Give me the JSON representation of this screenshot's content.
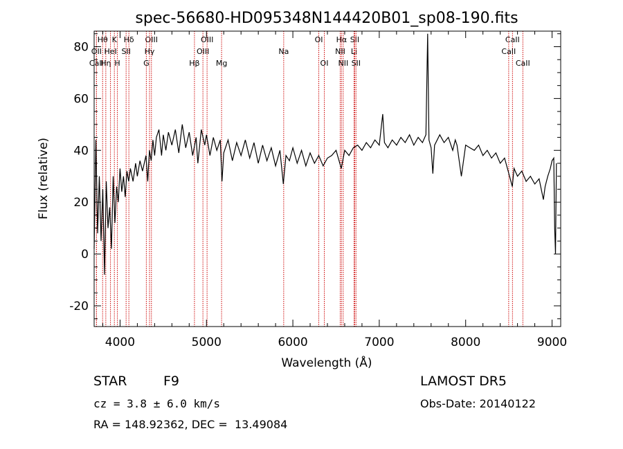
{
  "chart_data": {
    "type": "line",
    "title": "spec-56680-HD095348N144420B01_sp08-190.fits",
    "xlabel": "Wavelength (Å)",
    "ylabel": "Flux (relative)",
    "xlim": [
      3700,
      9100
    ],
    "ylim": [
      -28,
      86
    ],
    "xticks": [
      4000,
      5000,
      6000,
      7000,
      8000,
      9000
    ],
    "yticks": [
      -20,
      0,
      20,
      40,
      60,
      80
    ],
    "grid": false,
    "series": [
      {
        "color": "#000000",
        "points": [
          [
            3700,
            2
          ],
          [
            3720,
            44
          ],
          [
            3740,
            8
          ],
          [
            3760,
            30
          ],
          [
            3780,
            5
          ],
          [
            3800,
            25
          ],
          [
            3820,
            -8
          ],
          [
            3840,
            28
          ],
          [
            3860,
            10
          ],
          [
            3880,
            18
          ],
          [
            3900,
            2
          ],
          [
            3920,
            30
          ],
          [
            3940,
            12
          ],
          [
            3960,
            26
          ],
          [
            3980,
            20
          ],
          [
            4000,
            33
          ],
          [
            4020,
            24
          ],
          [
            4040,
            30
          ],
          [
            4060,
            22
          ],
          [
            4080,
            32
          ],
          [
            4100,
            28
          ],
          [
            4120,
            33
          ],
          [
            4150,
            28
          ],
          [
            4180,
            35
          ],
          [
            4200,
            30
          ],
          [
            4230,
            36
          ],
          [
            4260,
            32
          ],
          [
            4300,
            38
          ],
          [
            4320,
            28
          ],
          [
            4340,
            40
          ],
          [
            4360,
            36
          ],
          [
            4380,
            44
          ],
          [
            4400,
            38
          ],
          [
            4420,
            45
          ],
          [
            4450,
            48
          ],
          [
            4480,
            38
          ],
          [
            4500,
            46
          ],
          [
            4530,
            40
          ],
          [
            4560,
            47
          ],
          [
            4600,
            42
          ],
          [
            4640,
            48
          ],
          [
            4680,
            39
          ],
          [
            4720,
            50
          ],
          [
            4760,
            41
          ],
          [
            4800,
            47
          ],
          [
            4840,
            38
          ],
          [
            4880,
            45
          ],
          [
            4900,
            35
          ],
          [
            4940,
            48
          ],
          [
            4980,
            42
          ],
          [
            5000,
            46
          ],
          [
            5040,
            38
          ],
          [
            5080,
            45
          ],
          [
            5120,
            40
          ],
          [
            5160,
            44
          ],
          [
            5180,
            28
          ],
          [
            5200,
            39
          ],
          [
            5250,
            44
          ],
          [
            5300,
            36
          ],
          [
            5350,
            43
          ],
          [
            5400,
            38
          ],
          [
            5450,
            44
          ],
          [
            5500,
            37
          ],
          [
            5550,
            43
          ],
          [
            5600,
            35
          ],
          [
            5650,
            42
          ],
          [
            5700,
            36
          ],
          [
            5750,
            41
          ],
          [
            5800,
            34
          ],
          [
            5850,
            40
          ],
          [
            5890,
            27
          ],
          [
            5920,
            38
          ],
          [
            5960,
            36
          ],
          [
            6000,
            41
          ],
          [
            6050,
            35
          ],
          [
            6100,
            40
          ],
          [
            6150,
            34
          ],
          [
            6200,
            39
          ],
          [
            6250,
            35
          ],
          [
            6300,
            38
          ],
          [
            6350,
            34
          ],
          [
            6400,
            37
          ],
          [
            6450,
            38
          ],
          [
            6500,
            40
          ],
          [
            6560,
            33
          ],
          [
            6600,
            40
          ],
          [
            6650,
            38
          ],
          [
            6700,
            41
          ],
          [
            6750,
            42
          ],
          [
            6800,
            40
          ],
          [
            6850,
            43
          ],
          [
            6900,
            41
          ],
          [
            6950,
            44
          ],
          [
            7000,
            42
          ],
          [
            7040,
            54
          ],
          [
            7060,
            43
          ],
          [
            7100,
            41
          ],
          [
            7150,
            44
          ],
          [
            7200,
            42
          ],
          [
            7250,
            45
          ],
          [
            7300,
            43
          ],
          [
            7350,
            46
          ],
          [
            7400,
            42
          ],
          [
            7450,
            45
          ],
          [
            7500,
            43
          ],
          [
            7540,
            46
          ],
          [
            7560,
            85
          ],
          [
            7575,
            44
          ],
          [
            7600,
            41
          ],
          [
            7620,
            31
          ],
          [
            7640,
            42
          ],
          [
            7700,
            46
          ],
          [
            7750,
            43
          ],
          [
            7800,
            45
          ],
          [
            7850,
            40
          ],
          [
            7880,
            44
          ],
          [
            7900,
            42
          ],
          [
            7950,
            30
          ],
          [
            8000,
            42
          ],
          [
            8050,
            41
          ],
          [
            8100,
            40
          ],
          [
            8150,
            42
          ],
          [
            8200,
            38
          ],
          [
            8250,
            40
          ],
          [
            8300,
            37
          ],
          [
            8350,
            39
          ],
          [
            8400,
            35
          ],
          [
            8450,
            37
          ],
          [
            8500,
            31
          ],
          [
            8540,
            26
          ],
          [
            8560,
            33
          ],
          [
            8600,
            30
          ],
          [
            8650,
            32
          ],
          [
            8700,
            28
          ],
          [
            8750,
            30
          ],
          [
            8800,
            27
          ],
          [
            8850,
            29
          ],
          [
            8900,
            21
          ],
          [
            8920,
            26
          ],
          [
            8950,
            30
          ],
          [
            8980,
            33
          ],
          [
            9000,
            36
          ],
          [
            9020,
            37
          ],
          [
            9030,
            10
          ],
          [
            9040,
            0
          ],
          [
            9050,
            35
          ]
        ]
      }
    ],
    "line_markers": {
      "color": "#cc0000",
      "lines": [
        {
          "label": "CaII",
          "wavelength": 3727,
          "row": 3
        },
        {
          "label": "Hθ",
          "wavelength": 3798,
          "row": 1
        },
        {
          "label": "OII",
          "wavelength": 3727,
          "row": 2
        },
        {
          "label": "Hη",
          "wavelength": 3835,
          "row": 3
        },
        {
          "label": "HeI",
          "wavelength": 3889,
          "row": 2
        },
        {
          "label": "K",
          "wavelength": 3934,
          "row": 1
        },
        {
          "label": "H",
          "wavelength": 3969,
          "row": 3
        },
        {
          "label": "SII",
          "wavelength": 4070,
          "row": 2
        },
        {
          "label": "Hδ",
          "wavelength": 4102,
          "row": 1
        },
        {
          "label": "OIII",
          "wavelength": 4363,
          "row": 1
        },
        {
          "label": "Hγ",
          "wavelength": 4341,
          "row": 2
        },
        {
          "label": "G",
          "wavelength": 4304,
          "row": 3
        },
        {
          "label": "Hβ",
          "wavelength": 4861,
          "row": 3
        },
        {
          "label": "OIII",
          "wavelength": 4959,
          "row": 2
        },
        {
          "label": "OIII",
          "wavelength": 5007,
          "row": 1
        },
        {
          "label": "Mg",
          "wavelength": 5175,
          "row": 3
        },
        {
          "label": "Na",
          "wavelength": 5894,
          "row": 2
        },
        {
          "label": "OI",
          "wavelength": 6300,
          "row": 1
        },
        {
          "label": "OI",
          "wavelength": 6364,
          "row": 3
        },
        {
          "label": "Hα",
          "wavelength": 6563,
          "row": 1
        },
        {
          "label": "NII",
          "wavelength": 6548,
          "row": 2
        },
        {
          "label": "NII",
          "wavelength": 6583,
          "row": 3
        },
        {
          "label": "SII",
          "wavelength": 6716,
          "row": 1
        },
        {
          "label": "Li",
          "wavelength": 6708,
          "row": 2
        },
        {
          "label": "SII",
          "wavelength": 6731,
          "row": 3
        },
        {
          "label": "CaII",
          "wavelength": 8542,
          "row": 1
        },
        {
          "label": "CaII",
          "wavelength": 8498,
          "row": 2
        },
        {
          "label": "CaII",
          "wavelength": 8662,
          "row": 3
        }
      ]
    }
  },
  "info": {
    "class_label": "STAR",
    "subclass": "F9",
    "survey": "LAMOST DR5",
    "cz_line": "cz = 3.8 ± 6.0 km/s",
    "obs_date": "Obs-Date: 20140122",
    "radec_line": "RA = 148.92362, DEC =  13.49084"
  }
}
